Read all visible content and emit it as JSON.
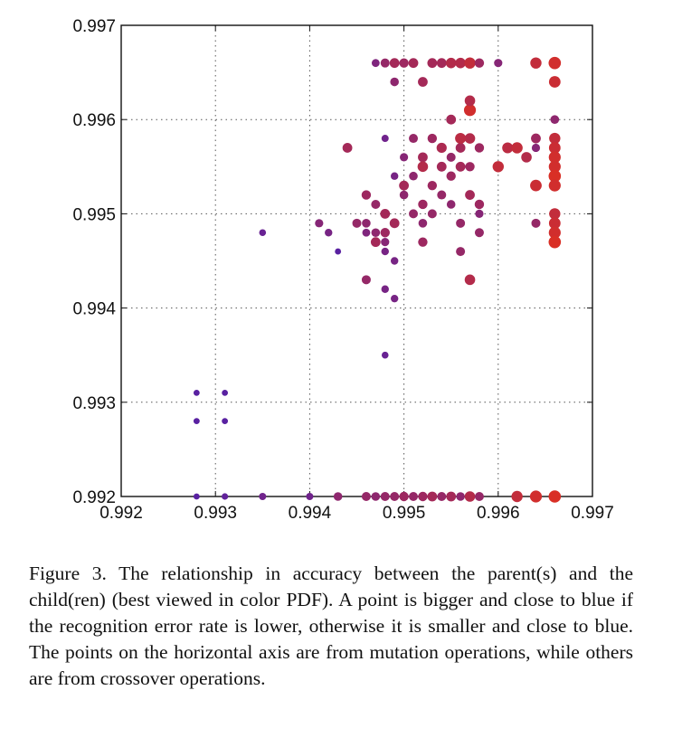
{
  "chart_data": {
    "type": "scatter",
    "title": "",
    "xlabel": "",
    "ylabel": "",
    "xlim": [
      0.992,
      0.997
    ],
    "ylim": [
      0.992,
      0.997
    ],
    "x_ticks": [
      "0.992",
      "0.993",
      "0.994",
      "0.995",
      "0.996",
      "0.997"
    ],
    "y_ticks": [
      "0.992",
      "0.993",
      "0.994",
      "0.995",
      "0.996",
      "0.997"
    ],
    "grid": "dotted",
    "color_scale": {
      "low": "#4a1fb0",
      "high": "#e0301e"
    },
    "point_encoding": "size and color follow recognition accuracy",
    "series": [
      {
        "points": [
          [
            0.9928,
            0.992,
            0.1
          ],
          [
            0.9931,
            0.992,
            0.15
          ],
          [
            0.9935,
            0.992,
            0.25
          ],
          [
            0.994,
            0.992,
            0.25
          ],
          [
            0.9943,
            0.992,
            0.45
          ],
          [
            0.9946,
            0.992,
            0.5
          ],
          [
            0.9947,
            0.992,
            0.45
          ],
          [
            0.9948,
            0.992,
            0.5
          ],
          [
            0.9949,
            0.992,
            0.5
          ],
          [
            0.995,
            0.992,
            0.55
          ],
          [
            0.9951,
            0.992,
            0.5
          ],
          [
            0.9952,
            0.992,
            0.55
          ],
          [
            0.9953,
            0.992,
            0.6
          ],
          [
            0.9954,
            0.992,
            0.5
          ],
          [
            0.9955,
            0.992,
            0.6
          ],
          [
            0.9956,
            0.992,
            0.45
          ],
          [
            0.9957,
            0.992,
            0.7
          ],
          [
            0.9958,
            0.992,
            0.5
          ],
          [
            0.9962,
            0.992,
            0.8
          ],
          [
            0.9964,
            0.992,
            0.9
          ],
          [
            0.9966,
            0.992,
            0.95
          ],
          [
            0.9928,
            0.9931,
            0.1
          ],
          [
            0.9931,
            0.9931,
            0.1
          ],
          [
            0.9928,
            0.9928,
            0.1
          ],
          [
            0.9931,
            0.9928,
            0.1
          ],
          [
            0.9935,
            0.9948,
            0.2
          ],
          [
            0.9943,
            0.9946,
            0.1
          ],
          [
            0.9942,
            0.9948,
            0.3
          ],
          [
            0.9941,
            0.9949,
            0.4
          ],
          [
            0.9945,
            0.9949,
            0.5
          ],
          [
            0.9946,
            0.9949,
            0.45
          ],
          [
            0.9946,
            0.9948,
            0.35
          ],
          [
            0.9946,
            0.9943,
            0.5
          ],
          [
            0.9947,
            0.9947,
            0.6
          ],
          [
            0.9947,
            0.9948,
            0.45
          ],
          [
            0.9948,
            0.9948,
            0.55
          ],
          [
            0.9948,
            0.9947,
            0.4
          ],
          [
            0.9948,
            0.9946,
            0.3
          ],
          [
            0.9949,
            0.9945,
            0.3
          ],
          [
            0.9948,
            0.9942,
            0.3
          ],
          [
            0.9949,
            0.9941,
            0.3
          ],
          [
            0.9948,
            0.9935,
            0.2
          ],
          [
            0.9944,
            0.9957,
            0.6
          ],
          [
            0.9946,
            0.9952,
            0.55
          ],
          [
            0.9947,
            0.9951,
            0.5
          ],
          [
            0.9948,
            0.995,
            0.6
          ],
          [
            0.9948,
            0.9958,
            0.25
          ],
          [
            0.9949,
            0.9954,
            0.3
          ],
          [
            0.995,
            0.9956,
            0.4
          ],
          [
            0.9951,
            0.9958,
            0.5
          ],
          [
            0.9951,
            0.9954,
            0.45
          ],
          [
            0.9952,
            0.9956,
            0.6
          ],
          [
            0.9952,
            0.9951,
            0.55
          ],
          [
            0.995,
            0.9953,
            0.6
          ],
          [
            0.9949,
            0.9949,
            0.6
          ],
          [
            0.995,
            0.9952,
            0.45
          ],
          [
            0.9951,
            0.995,
            0.5
          ],
          [
            0.9952,
            0.9947,
            0.55
          ],
          [
            0.9952,
            0.9949,
            0.45
          ],
          [
            0.9953,
            0.9953,
            0.55
          ],
          [
            0.9953,
            0.995,
            0.5
          ],
          [
            0.9954,
            0.9955,
            0.6
          ],
          [
            0.9954,
            0.9952,
            0.5
          ],
          [
            0.9955,
            0.9954,
            0.55
          ],
          [
            0.9955,
            0.9951,
            0.45
          ],
          [
            0.9955,
            0.996,
            0.6
          ],
          [
            0.9956,
            0.9957,
            0.6
          ],
          [
            0.9956,
            0.9955,
            0.6
          ],
          [
            0.9956,
            0.9949,
            0.5
          ],
          [
            0.9957,
            0.9952,
            0.6
          ],
          [
            0.9957,
            0.9958,
            0.7
          ],
          [
            0.9957,
            0.9955,
            0.55
          ],
          [
            0.9957,
            0.9961,
            0.9
          ],
          [
            0.9957,
            0.9962,
            0.7
          ],
          [
            0.9957,
            0.9943,
            0.7
          ],
          [
            0.9958,
            0.9957,
            0.55
          ],
          [
            0.9958,
            0.9951,
            0.55
          ],
          [
            0.9958,
            0.9948,
            0.5
          ],
          [
            0.9958,
            0.995,
            0.4
          ],
          [
            0.9956,
            0.9946,
            0.5
          ],
          [
            0.9952,
            0.9955,
            0.7
          ],
          [
            0.9953,
            0.9958,
            0.55
          ],
          [
            0.9954,
            0.9957,
            0.65
          ],
          [
            0.9955,
            0.9956,
            0.5
          ],
          [
            0.9956,
            0.9958,
            0.75
          ],
          [
            0.9949,
            0.9964,
            0.45
          ],
          [
            0.9952,
            0.9964,
            0.6
          ],
          [
            0.9948,
            0.9966,
            0.5
          ],
          [
            0.9947,
            0.9966,
            0.35
          ],
          [
            0.9949,
            0.9966,
            0.6
          ],
          [
            0.995,
            0.9966,
            0.55
          ],
          [
            0.9951,
            0.9966,
            0.6
          ],
          [
            0.9953,
            0.9966,
            0.6
          ],
          [
            0.9954,
            0.9966,
            0.6
          ],
          [
            0.9955,
            0.9966,
            0.7
          ],
          [
            0.9956,
            0.9966,
            0.7
          ],
          [
            0.9957,
            0.9966,
            0.8
          ],
          [
            0.9958,
            0.9966,
            0.55
          ],
          [
            0.996,
            0.9966,
            0.4
          ],
          [
            0.9964,
            0.9966,
            0.8
          ],
          [
            0.9966,
            0.9966,
            0.95
          ],
          [
            0.996,
            0.9955,
            0.8
          ],
          [
            0.9961,
            0.9957,
            0.75
          ],
          [
            0.9962,
            0.9957,
            0.8
          ],
          [
            0.9963,
            0.9956,
            0.7
          ],
          [
            0.9964,
            0.9953,
            0.85
          ],
          [
            0.9964,
            0.9949,
            0.5
          ],
          [
            0.9964,
            0.9957,
            0.4
          ],
          [
            0.9964,
            0.9958,
            0.6
          ],
          [
            0.9966,
            0.996,
            0.45
          ],
          [
            0.9966,
            0.9958,
            0.8
          ],
          [
            0.9966,
            0.9957,
            0.85
          ],
          [
            0.9966,
            0.9956,
            0.9
          ],
          [
            0.9966,
            0.9955,
            0.9
          ],
          [
            0.9966,
            0.9954,
            0.95
          ],
          [
            0.9966,
            0.9953,
            0.9
          ],
          [
            0.9966,
            0.995,
            0.8
          ],
          [
            0.9966,
            0.9949,
            0.85
          ],
          [
            0.9966,
            0.9948,
            0.9
          ],
          [
            0.9966,
            0.9947,
            0.95
          ],
          [
            0.9966,
            0.9964,
            0.85
          ],
          [
            0.9966,
            0.9966,
            0.9
          ],
          [
            0.9964,
            0.9958,
            0.55
          ]
        ]
      }
    ]
  },
  "caption": "Figure 3.  The relationship in accuracy between the parent(s) and the child(ren) (best viewed in color PDF). A point is bigger and close to blue if the recognition error rate is lower, otherwise it is smaller and close to blue.  The points on the horizontal axis are from mutation operations, while others are from crossover operations."
}
